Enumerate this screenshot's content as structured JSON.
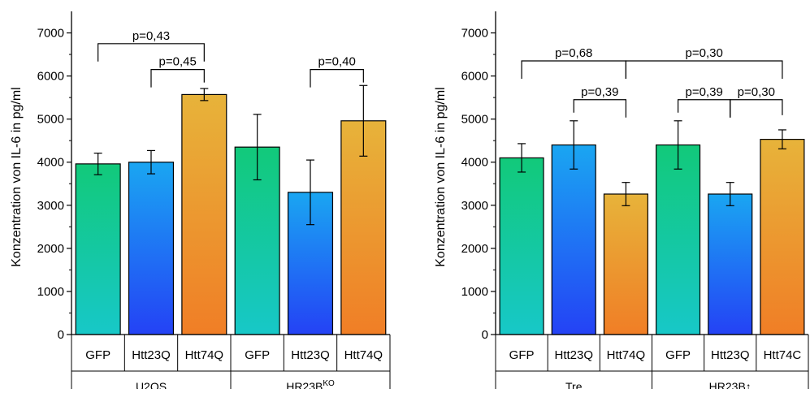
{
  "colors": {
    "gfp_top": "#12c97a",
    "gfp_bottom": "#17c8c8",
    "htt23_top": "#1aa6f2",
    "htt23_bottom": "#2442f5",
    "htt74_top": "#e7b33a",
    "htt74_bottom": "#f07e26",
    "axis": "#000000"
  },
  "chart_data": [
    {
      "type": "bar",
      "ylabel": "Konzentration von IL-6 in pg/ml",
      "ylim": [
        0,
        7500
      ],
      "yticks": [
        0,
        1000,
        2000,
        3000,
        4000,
        5000,
        6000,
        7000
      ],
      "categories": [
        "GFP",
        "Htt23Q",
        "Htt74Q",
        "GFP",
        "Htt23Q",
        "Htt74Q"
      ],
      "color_keys": [
        "gfp",
        "htt23",
        "htt74",
        "gfp",
        "htt23",
        "htt74"
      ],
      "values": [
        3960,
        4000,
        5570,
        4350,
        3300,
        4960
      ],
      "errors": [
        250,
        270,
        140,
        760,
        750,
        820
      ],
      "groups": [
        {
          "base": "U2OS",
          "sup": "",
          "span": [
            0,
            2
          ]
        },
        {
          "base": "HR23B",
          "sup": "KO",
          "span": [
            3,
            5
          ]
        }
      ],
      "brackets": [
        {
          "from": 0,
          "to": 2,
          "y": 6750,
          "label": "p=0,43"
        },
        {
          "from": 1,
          "to": 2,
          "y": 6150,
          "label": "p=0,45"
        },
        {
          "from": 4,
          "to": 5,
          "y": 6150,
          "label": "p=0,40"
        }
      ]
    },
    {
      "type": "bar",
      "ylabel": "Konzentration von IL-6 in pg/ml",
      "ylim": [
        0,
        7500
      ],
      "yticks": [
        0,
        1000,
        2000,
        3000,
        4000,
        5000,
        6000,
        7000
      ],
      "categories": [
        "GFP",
        "Htt23Q",
        "Htt74Q",
        "GFP",
        "Htt23Q",
        "Htt74C"
      ],
      "color_keys": [
        "gfp",
        "htt23",
        "htt74",
        "gfp",
        "htt23",
        "htt74"
      ],
      "values": [
        4100,
        4400,
        3260,
        4400,
        3260,
        4530
      ],
      "errors": [
        330,
        560,
        270,
        560,
        270,
        220
      ],
      "groups": [
        {
          "base": "Tre",
          "sup": "",
          "span": [
            0,
            2
          ]
        },
        {
          "base": "HR23B↑",
          "sup": "",
          "span": [
            3,
            5
          ]
        }
      ],
      "brackets": [
        {
          "from": 0,
          "to": 2,
          "y": 6350,
          "label": "p=0,68"
        },
        {
          "from": 2,
          "to": 5,
          "y": 6350,
          "label": "p=0,30"
        },
        {
          "from": 1,
          "to": 2,
          "y": 5450,
          "label": "p=0,39"
        },
        {
          "from": 3,
          "to": 4,
          "y": 5450,
          "label": "p=0,39"
        },
        {
          "from": 4,
          "to": 5,
          "y": 5450,
          "label": "p=0,30"
        }
      ]
    }
  ]
}
